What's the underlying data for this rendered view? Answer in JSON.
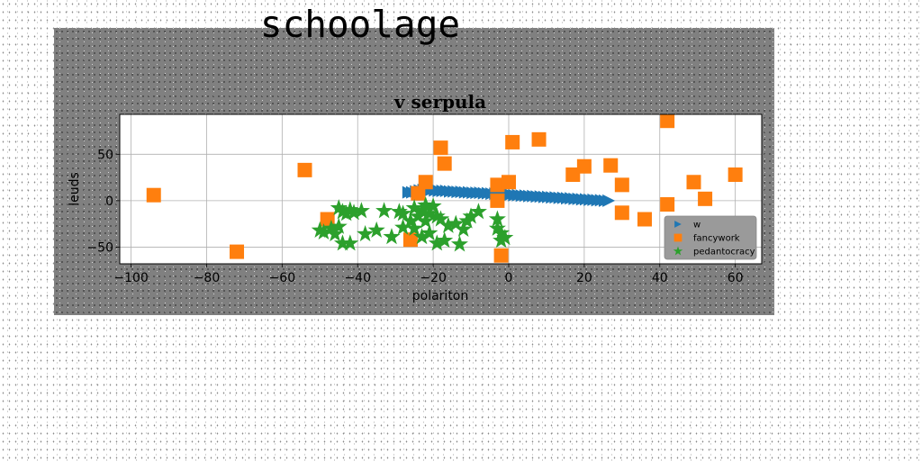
{
  "figure": {
    "suptitle": "schoolage"
  },
  "chart_data": {
    "type": "scatter",
    "title": "v serpula",
    "xlabel": "polariton",
    "ylabel": "leuds",
    "xlim": [
      -103,
      67
    ],
    "ylim": [
      -68,
      93
    ],
    "xticks": [
      -100,
      -80,
      -60,
      -40,
      -20,
      0,
      20,
      40,
      60
    ],
    "yticks": [
      -50,
      0,
      50
    ],
    "xtick_labels": [
      "−100",
      "−80",
      "−60",
      "−40",
      "−20",
      "0",
      "20",
      "40",
      "60"
    ],
    "ytick_labels": [
      "−50",
      "0",
      "50"
    ],
    "grid": true,
    "legend_position": "lower-right",
    "series": [
      {
        "name": "w",
        "marker": "triangle-right",
        "color": "#1f77b4",
        "x": [
          -26.5,
          -25.5,
          -24.5,
          -23.5,
          -22.5,
          -21.5,
          -20.5,
          -19.5,
          -18.5,
          -17.5,
          -16.5,
          -15.5,
          -14.5,
          -13.5,
          -12.5,
          -11.5,
          -10.5,
          -9.5,
          -8.5,
          -7.5,
          -6.5,
          -5.5,
          -4.5,
          -3.5,
          -2.5,
          -1.5,
          -0.5,
          0.5,
          1.5,
          2.5,
          3.5,
          4.5,
          5.5,
          6.5,
          7.5,
          8.5,
          9.5,
          10.5,
          11.5,
          12.5,
          13.5,
          14.5,
          15.5,
          16.5,
          17.5,
          18.5,
          19.5,
          20.5,
          21.5,
          22.5,
          23.5,
          24.5,
          25.5,
          26.5
        ],
        "y": [
          9,
          9,
          10,
          11,
          11.5,
          11.5,
          11.5,
          11,
          10.5,
          10.5,
          10.5,
          10,
          10,
          9.5,
          9.5,
          9,
          9,
          8.5,
          8.5,
          8.5,
          8,
          8,
          7.5,
          7.5,
          7,
          7,
          6.5,
          6.5,
          6,
          6,
          5.5,
          5.5,
          5,
          5,
          4.5,
          4.5,
          4,
          4,
          3.5,
          3.5,
          3,
          3,
          2.5,
          2.5,
          2,
          2,
          1.5,
          1.5,
          1,
          1,
          0.5,
          0.5,
          0,
          0
        ]
      },
      {
        "name": "fancywork",
        "marker": "square",
        "color": "#ff7f0e",
        "x": [
          -94,
          -72,
          -54,
          -48,
          -26,
          -24,
          -22,
          -18,
          -17,
          -3,
          -3,
          -2,
          0,
          1,
          8,
          17,
          20,
          27,
          30,
          30,
          36,
          42,
          42,
          49,
          52,
          60
        ],
        "y": [
          6,
          -55,
          33,
          -20,
          -42,
          8,
          20,
          57,
          40,
          0,
          17,
          -59,
          20,
          63,
          66,
          28,
          37,
          38,
          17,
          -13,
          -20,
          -4,
          86,
          20,
          2,
          28
        ]
      },
      {
        "name": "pedantocracy",
        "marker": "star",
        "color": "#2ca02c",
        "x": [
          -50,
          -49,
          -47,
          -46,
          -45,
          -45,
          -44,
          -44,
          -43,
          -42,
          -42,
          -41,
          -39,
          -38,
          -35,
          -33,
          -31,
          -29,
          -28,
          -28,
          -26,
          -25,
          -25,
          -24,
          -23,
          -23,
          -22,
          -22,
          -21,
          -21,
          -20,
          -19,
          -19,
          -18,
          -17,
          -16,
          -14,
          -13,
          -12,
          -11,
          -10,
          -8,
          -3,
          -3,
          -2,
          -2,
          -1
        ],
        "y": [
          -32,
          -34,
          -30,
          -36,
          -28,
          -8,
          -46,
          -12,
          -14,
          -46,
          -10,
          -13,
          -11,
          -36,
          -32,
          -11,
          -39,
          -12,
          -14,
          -29,
          -22,
          -30,
          -8,
          -17,
          -11,
          -39,
          -22,
          -5,
          -14,
          -35,
          -6,
          -17,
          -46,
          -20,
          -43,
          -27,
          -25,
          -47,
          -31,
          -22,
          -17,
          -12,
          -20,
          -30,
          -35,
          -43,
          -40
        ]
      }
    ]
  }
}
